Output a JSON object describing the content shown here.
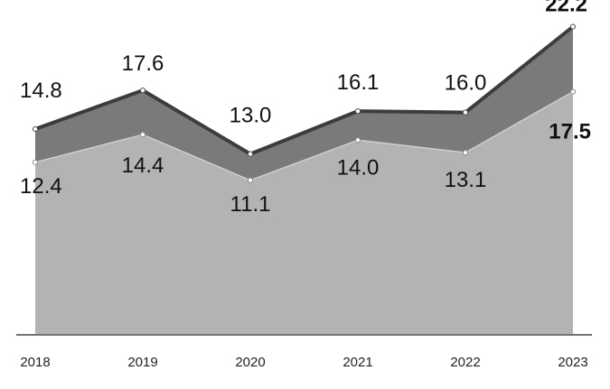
{
  "chart_data": {
    "type": "area",
    "categories": [
      "2018",
      "2019",
      "2020",
      "2021",
      "2022",
      "2023"
    ],
    "series": [
      {
        "values": [
          14.8,
          17.6,
          13.0,
          16.1,
          16.0,
          22.2
        ],
        "color": "#7a7a7a",
        "line_color": "#3c3c3c"
      },
      {
        "values": [
          12.4,
          14.4,
          11.1,
          14.0,
          13.1,
          17.5
        ],
        "color": "#b3b3b3",
        "line_color": "#cfcfcf"
      }
    ],
    "data_labels": {
      "upper": [
        "14.8",
        "17.6",
        "13.0",
        "16.1",
        "16.0",
        "22.2"
      ],
      "lower": [
        "12.4",
        "14.4",
        "11.1",
        "14.0",
        "13.1",
        "17.5"
      ]
    },
    "highlighted_index": 5,
    "ylim": [
      0,
      23.8
    ],
    "grid": false,
    "legend": "none"
  }
}
